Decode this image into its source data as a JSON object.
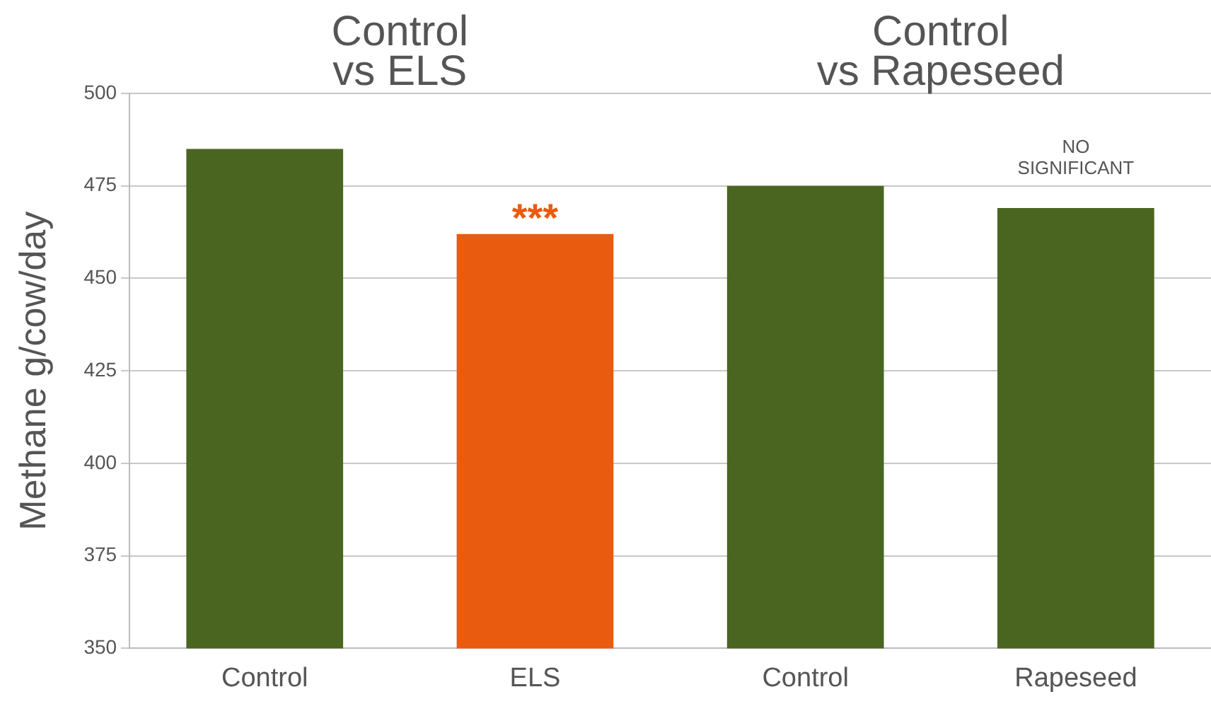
{
  "chart_data": {
    "type": "bar",
    "ylabel": "Methane g/cow/day",
    "categories": [
      "Control",
      "ELS",
      "Control",
      "Rapeseed"
    ],
    "values": [
      485,
      462,
      475,
      469
    ],
    "colors": [
      "#4a6520",
      "#e95b0e",
      "#4a6520",
      "#4a6520"
    ],
    "ylim": [
      350,
      500
    ],
    "yticks": [
      350,
      375,
      400,
      425,
      450,
      475,
      500
    ],
    "grid": "y",
    "annotations": [
      "Control\nvs ELS",
      "Control\nvs Rapeseed",
      {
        "text": "***",
        "x": "ELS",
        "y": 462
      },
      {
        "text": "NO\nSIGNIFICANT",
        "x": "Rapeseed",
        "y": 469
      }
    ]
  }
}
